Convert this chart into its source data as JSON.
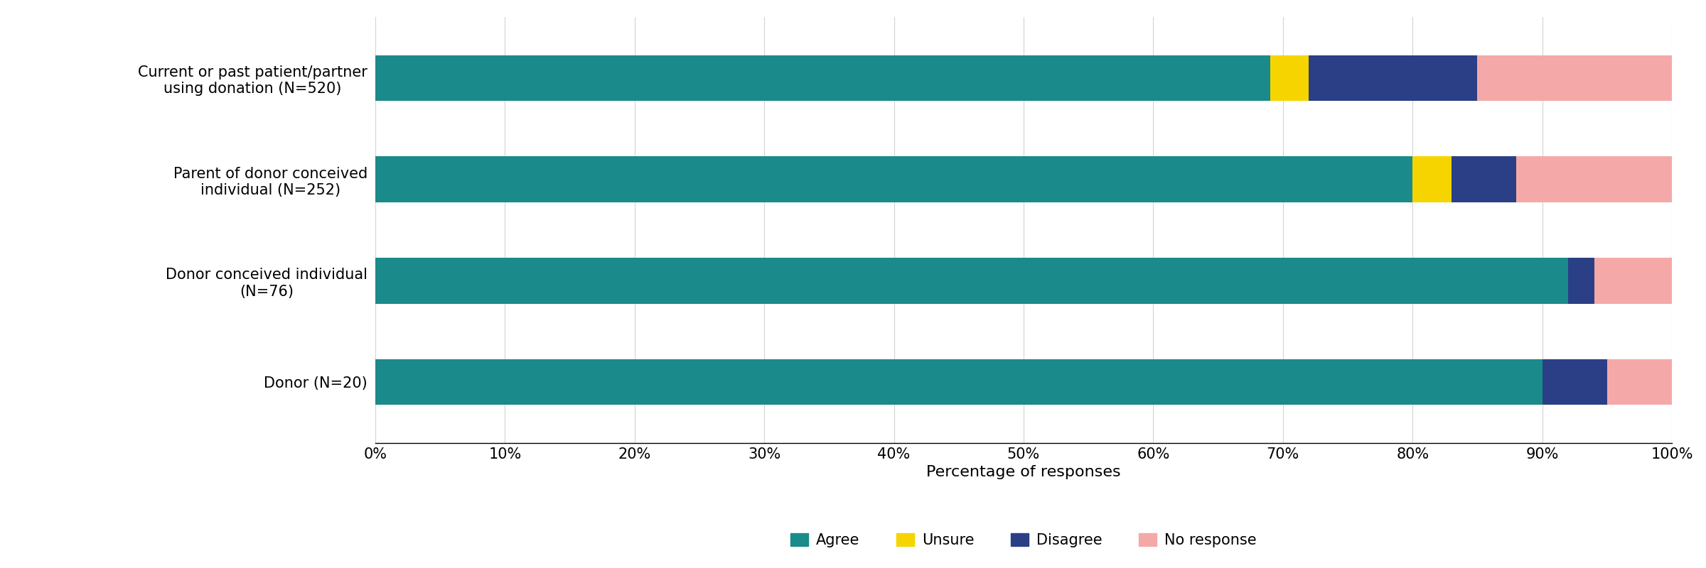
{
  "categories": [
    "Donor (N=20)",
    "Donor conceived individual\n(N=76)",
    "Parent of donor conceived\nindividual (N=252)",
    "Current or past patient/partner\nusing donation (N=520)"
  ],
  "agree": [
    90,
    92,
    80,
    69
  ],
  "unsure": [
    0,
    0,
    3,
    3
  ],
  "disagree": [
    5,
    2,
    5,
    13
  ],
  "no_response": [
    5,
    6,
    12,
    15
  ],
  "colors": {
    "agree": "#1a8a8a",
    "unsure": "#f5d400",
    "disagree": "#2b3f87",
    "no_response": "#f4a9a8"
  },
  "legend_labels": [
    "Agree",
    "Unsure",
    "Disagree",
    "No response"
  ],
  "xlabel": "Percentage of responses",
  "xtick_labels": [
    "0%",
    "10%",
    "20%",
    "30%",
    "40%",
    "50%",
    "60%",
    "70%",
    "80%",
    "90%",
    "100%"
  ],
  "xtick_values": [
    0,
    10,
    20,
    30,
    40,
    50,
    60,
    70,
    80,
    90,
    100
  ],
  "bar_height": 0.45,
  "figsize": [
    24,
    8
  ],
  "dpi": 100,
  "label_fontsize": 16,
  "tick_fontsize": 15,
  "legend_fontsize": 15,
  "ytick_fontsize": 15
}
